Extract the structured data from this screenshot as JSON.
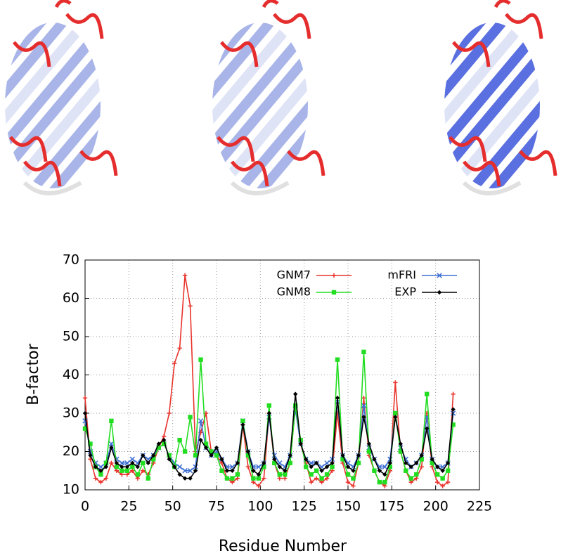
{
  "chart_data": {
    "type": "line",
    "x_label": "Residue Number",
    "y_label": "B-factor",
    "xlim": [
      0,
      225
    ],
    "ylim": [
      10,
      70
    ],
    "xticks": [
      0,
      25,
      50,
      75,
      100,
      125,
      150,
      175,
      200,
      225
    ],
    "yticks": [
      10,
      20,
      30,
      40,
      50,
      60,
      70
    ],
    "grid": true,
    "legend": "top-right",
    "x": [
      0,
      3,
      6,
      9,
      12,
      15,
      18,
      21,
      24,
      27,
      30,
      33,
      36,
      39,
      42,
      45,
      48,
      51,
      54,
      57,
      60,
      63,
      66,
      69,
      72,
      75,
      78,
      81,
      84,
      87,
      90,
      93,
      96,
      99,
      102,
      105,
      108,
      111,
      114,
      117,
      120,
      123,
      126,
      129,
      132,
      135,
      138,
      141,
      144,
      147,
      150,
      153,
      156,
      159,
      162,
      165,
      168,
      171,
      174,
      177,
      180,
      183,
      186,
      189,
      192,
      195,
      198,
      201,
      204,
      207,
      210
    ],
    "series": [
      {
        "name": "GNM7",
        "color": "#e8332b",
        "marker": "plus",
        "values": [
          34,
          18,
          13,
          12,
          13,
          17,
          15,
          14,
          14,
          15,
          13,
          15,
          14,
          17,
          21,
          24,
          30,
          43,
          47,
          66,
          58,
          20,
          25,
          30,
          20,
          19,
          17,
          13,
          12,
          13,
          27,
          16,
          12,
          11,
          13,
          30,
          17,
          13,
          13,
          17,
          32,
          22,
          17,
          12,
          13,
          12,
          13,
          15,
          30,
          17,
          12,
          11,
          17,
          34,
          19,
          15,
          12,
          11,
          15,
          38,
          20,
          15,
          12,
          13,
          16,
          30,
          16,
          12,
          11,
          12,
          35
        ]
      },
      {
        "name": "mFRI",
        "color": "#3d6fd4",
        "marker": "cross",
        "values": [
          28,
          20,
          17,
          16,
          17,
          22,
          18,
          17,
          17,
          18,
          17,
          19,
          18,
          19,
          21,
          22,
          19,
          17,
          16,
          15,
          15,
          16,
          28,
          21,
          19,
          20,
          18,
          16,
          16,
          17,
          28,
          20,
          16,
          16,
          17,
          29,
          19,
          17,
          16,
          19,
          31,
          22,
          18,
          17,
          17,
          16,
          17,
          18,
          33,
          19,
          17,
          16,
          19,
          32,
          21,
          18,
          16,
          16,
          18,
          30,
          21,
          18,
          16,
          17,
          19,
          29,
          18,
          16,
          16,
          17,
          30
        ]
      },
      {
        "name": "GNM8",
        "color": "#22dd22",
        "marker": "square",
        "values": [
          26,
          22,
          16,
          14,
          17,
          28,
          16,
          15,
          15,
          16,
          14,
          17,
          13,
          18,
          21,
          22,
          19,
          16,
          23,
          20,
          29,
          19,
          44,
          22,
          20,
          19,
          15,
          13,
          13,
          14,
          28,
          19,
          13,
          13,
          16,
          32,
          17,
          14,
          14,
          17,
          32,
          23,
          16,
          14,
          15,
          13,
          14,
          16,
          44,
          18,
          14,
          13,
          17,
          46,
          20,
          15,
          12,
          12,
          16,
          30,
          20,
          15,
          13,
          14,
          18,
          35,
          17,
          14,
          13,
          15,
          27
        ]
      },
      {
        "name": "EXP",
        "color": "#000000",
        "marker": "diamond",
        "values": [
          30,
          19,
          16,
          15,
          16,
          21,
          17,
          16,
          16,
          17,
          16,
          19,
          17,
          19,
          22,
          23,
          18,
          16,
          14,
          13,
          13,
          15,
          23,
          21,
          19,
          21,
          18,
          15,
          15,
          17,
          27,
          20,
          15,
          14,
          17,
          30,
          18,
          16,
          15,
          19,
          35,
          22,
          18,
          16,
          17,
          15,
          16,
          17,
          34,
          19,
          16,
          15,
          19,
          29,
          22,
          18,
          15,
          14,
          17,
          29,
          22,
          17,
          16,
          17,
          19,
          26,
          18,
          16,
          15,
          17,
          31
        ]
      }
    ]
  }
}
